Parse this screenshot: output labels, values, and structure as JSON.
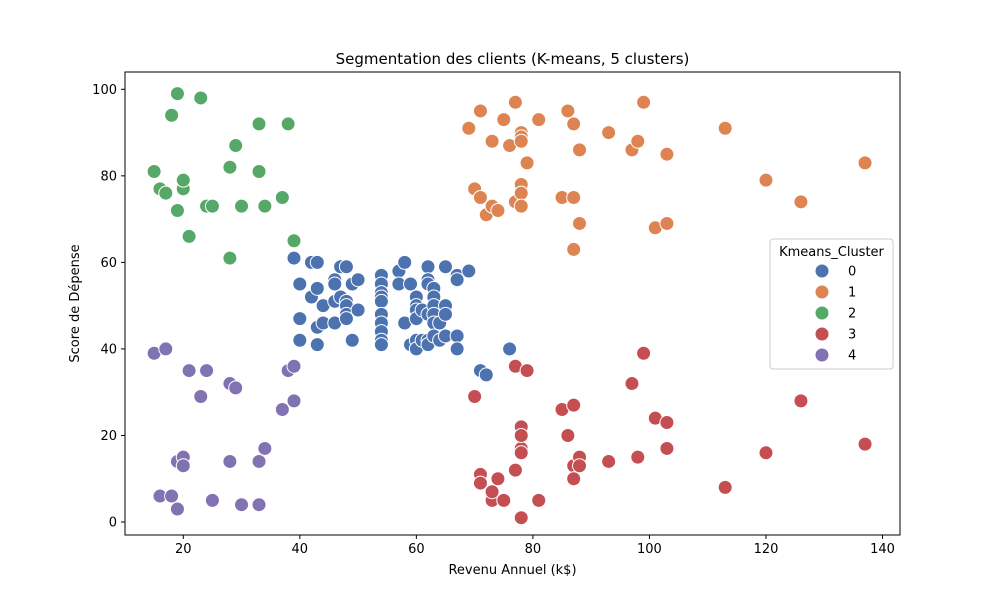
{
  "chart_data": {
    "type": "scatter",
    "title": "Segmentation des clients (K-means, 5 clusters)",
    "xlabel": "Revenu Annuel (k$)",
    "ylabel": "Score de Dépense",
    "xlim": [
      10,
      143
    ],
    "ylim": [
      -3,
      104
    ],
    "xticks": [
      20,
      40,
      60,
      80,
      100,
      120,
      140
    ],
    "yticks": [
      0,
      20,
      40,
      60,
      80,
      100
    ],
    "grid": false,
    "legend": {
      "title": "Kmeans_Cluster",
      "placement": "center-right"
    },
    "series": [
      {
        "name": "0",
        "color": "#4c72b0",
        "points": [
          [
            39,
            61
          ],
          [
            40,
            55
          ],
          [
            40,
            47
          ],
          [
            40,
            42
          ],
          [
            42,
            60
          ],
          [
            42,
            52
          ],
          [
            43,
            60
          ],
          [
            43,
            54
          ],
          [
            43,
            45
          ],
          [
            43,
            41
          ],
          [
            44,
            50
          ],
          [
            44,
            46
          ],
          [
            46,
            56
          ],
          [
            46,
            55
          ],
          [
            46,
            51
          ],
          [
            46,
            46
          ],
          [
            47,
            59
          ],
          [
            47,
            52
          ],
          [
            48,
            59
          ],
          [
            48,
            51
          ],
          [
            48,
            50
          ],
          [
            48,
            48
          ],
          [
            48,
            47
          ],
          [
            49,
            55
          ],
          [
            49,
            42
          ],
          [
            50,
            56
          ],
          [
            50,
            49
          ],
          [
            54,
            57
          ],
          [
            54,
            55
          ],
          [
            54,
            53
          ],
          [
            54,
            52
          ],
          [
            54,
            51
          ],
          [
            54,
            48
          ],
          [
            54,
            46
          ],
          [
            54,
            44
          ],
          [
            54,
            42
          ],
          [
            54,
            41
          ],
          [
            57,
            58
          ],
          [
            57,
            55
          ],
          [
            58,
            60
          ],
          [
            58,
            46
          ],
          [
            59,
            55
          ],
          [
            59,
            41
          ],
          [
            60,
            52
          ],
          [
            60,
            50
          ],
          [
            60,
            49
          ],
          [
            60,
            47
          ],
          [
            60,
            42
          ],
          [
            60,
            40
          ],
          [
            61,
            49
          ],
          [
            61,
            42
          ],
          [
            62,
            59
          ],
          [
            62,
            56
          ],
          [
            62,
            55
          ],
          [
            62,
            48
          ],
          [
            62,
            42
          ],
          [
            62,
            41
          ],
          [
            63,
            54
          ],
          [
            63,
            52
          ],
          [
            63,
            50
          ],
          [
            63,
            48
          ],
          [
            63,
            46
          ],
          [
            63,
            43
          ],
          [
            64,
            46
          ],
          [
            64,
            42
          ],
          [
            65,
            59
          ],
          [
            65,
            50
          ],
          [
            65,
            48
          ],
          [
            65,
            43
          ],
          [
            67,
            57
          ],
          [
            67,
            56
          ],
          [
            67,
            43
          ],
          [
            67,
            40
          ],
          [
            69,
            58
          ],
          [
            71,
            35
          ],
          [
            72,
            34
          ],
          [
            76,
            40
          ]
        ]
      },
      {
        "name": "1",
        "color": "#dd8452",
        "points": [
          [
            69,
            91
          ],
          [
            70,
            77
          ],
          [
            71,
            95
          ],
          [
            71,
            75
          ],
          [
            72,
            71
          ],
          [
            73,
            88
          ],
          [
            73,
            73
          ],
          [
            74,
            72
          ],
          [
            75,
            93
          ],
          [
            76,
            87
          ],
          [
            77,
            97
          ],
          [
            77,
            74
          ],
          [
            78,
            90
          ],
          [
            78,
            89
          ],
          [
            78,
            88
          ],
          [
            78,
            78
          ],
          [
            78,
            76
          ],
          [
            78,
            73
          ],
          [
            79,
            83
          ],
          [
            81,
            93
          ],
          [
            85,
            75
          ],
          [
            86,
            95
          ],
          [
            87,
            92
          ],
          [
            87,
            75
          ],
          [
            87,
            63
          ],
          [
            88,
            86
          ],
          [
            88,
            69
          ],
          [
            93,
            90
          ],
          [
            97,
            86
          ],
          [
            98,
            88
          ],
          [
            99,
            97
          ],
          [
            101,
            68
          ],
          [
            103,
            85
          ],
          [
            103,
            69
          ],
          [
            113,
            91
          ],
          [
            120,
            79
          ],
          [
            126,
            74
          ],
          [
            137,
            83
          ]
        ]
      },
      {
        "name": "2",
        "color": "#55a868",
        "points": [
          [
            15,
            81
          ],
          [
            16,
            77
          ],
          [
            17,
            76
          ],
          [
            18,
            94
          ],
          [
            19,
            99
          ],
          [
            19,
            72
          ],
          [
            20,
            77
          ],
          [
            20,
            79
          ],
          [
            21,
            66
          ],
          [
            23,
            98
          ],
          [
            24,
            73
          ],
          [
            25,
            73
          ],
          [
            28,
            82
          ],
          [
            28,
            61
          ],
          [
            29,
            87
          ],
          [
            30,
            73
          ],
          [
            33,
            92
          ],
          [
            33,
            81
          ],
          [
            34,
            73
          ],
          [
            37,
            75
          ],
          [
            38,
            92
          ],
          [
            39,
            65
          ]
        ]
      },
      {
        "name": "3",
        "color": "#c44e52",
        "points": [
          [
            70,
            29
          ],
          [
            71,
            11
          ],
          [
            71,
            9
          ],
          [
            73,
            5
          ],
          [
            73,
            7
          ],
          [
            74,
            10
          ],
          [
            75,
            5
          ],
          [
            77,
            12
          ],
          [
            77,
            36
          ],
          [
            78,
            22
          ],
          [
            78,
            17
          ],
          [
            78,
            20
          ],
          [
            78,
            16
          ],
          [
            78,
            1
          ],
          [
            79,
            35
          ],
          [
            81,
            5
          ],
          [
            85,
            26
          ],
          [
            86,
            20
          ],
          [
            87,
            27
          ],
          [
            87,
            13
          ],
          [
            87,
            10
          ],
          [
            88,
            15
          ],
          [
            88,
            13
          ],
          [
            93,
            14
          ],
          [
            97,
            32
          ],
          [
            98,
            15
          ],
          [
            99,
            39
          ],
          [
            101,
            24
          ],
          [
            103,
            23
          ],
          [
            103,
            17
          ],
          [
            113,
            8
          ],
          [
            120,
            16
          ],
          [
            126,
            28
          ],
          [
            137,
            18
          ]
        ]
      },
      {
        "name": "4",
        "color": "#8172b2",
        "points": [
          [
            15,
            39
          ],
          [
            16,
            6
          ],
          [
            17,
            40
          ],
          [
            18,
            6
          ],
          [
            19,
            3
          ],
          [
            19,
            14
          ],
          [
            20,
            15
          ],
          [
            20,
            13
          ],
          [
            21,
            35
          ],
          [
            23,
            29
          ],
          [
            24,
            35
          ],
          [
            25,
            5
          ],
          [
            28,
            14
          ],
          [
            28,
            32
          ],
          [
            29,
            31
          ],
          [
            30,
            4
          ],
          [
            33,
            4
          ],
          [
            33,
            14
          ],
          [
            34,
            17
          ],
          [
            37,
            26
          ],
          [
            38,
            35
          ],
          [
            39,
            36
          ],
          [
            39,
            28
          ]
        ]
      }
    ]
  }
}
